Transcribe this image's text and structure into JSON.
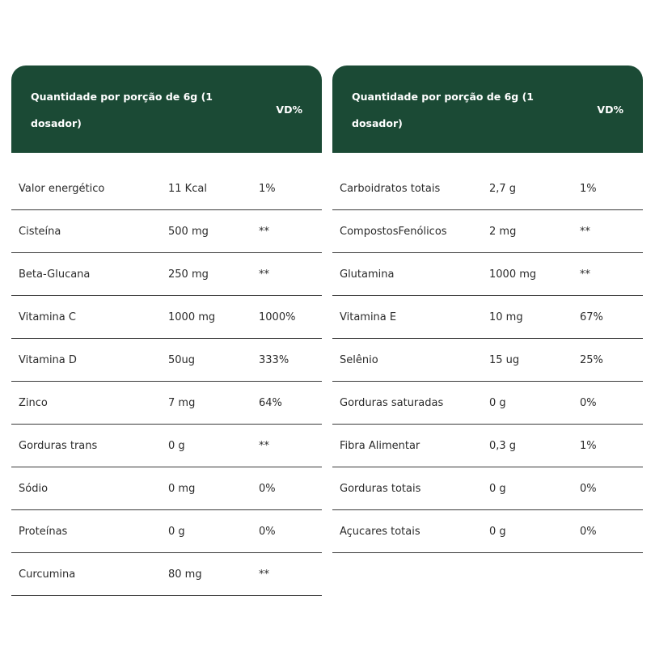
{
  "header": {
    "qty_label": "Quantidade por porção de 6g (1 dosador)",
    "vd_label": "VD%"
  },
  "left_table": [
    {
      "name": "Valor energético",
      "amount": "11 Kcal",
      "vd": "1%"
    },
    {
      "name": "Cisteína",
      "amount": "500 mg",
      "vd": "**"
    },
    {
      "name": "Beta-Glucana",
      "amount": "250 mg",
      "vd": "**"
    },
    {
      "name": "Vitamina C",
      "amount": "1000 mg",
      "vd": "1000%"
    },
    {
      "name": "Vitamina D",
      "amount": "50ug",
      "vd": "333%"
    },
    {
      "name": "Zinco",
      "amount": "7 mg",
      "vd": "64%"
    },
    {
      "name": "Gorduras trans",
      "amount": "0 g",
      "vd": "**"
    },
    {
      "name": "Sódio",
      "amount": "0 mg",
      "vd": "0%"
    },
    {
      "name": "Proteínas",
      "amount": "0 g",
      "vd": "0%"
    },
    {
      "name": "Curcumina",
      "amount": "80 mg",
      "vd": "**"
    }
  ],
  "right_table": [
    {
      "name": "Carboidratos totais",
      "amount": "2,7 g",
      "vd": "1%"
    },
    {
      "name": "CompostosFenólicos",
      "amount": "2 mg",
      "vd": "**"
    },
    {
      "name": "Glutamina",
      "amount": "1000 mg",
      "vd": "**"
    },
    {
      "name": "Vitamina E",
      "amount": "10 mg",
      "vd": "67%"
    },
    {
      "name": "Selênio",
      "amount": "15 ug",
      "vd": "25%"
    },
    {
      "name": "Gorduras saturadas",
      "amount": "0 g",
      "vd": "0%"
    },
    {
      "name": "Fibra Alimentar",
      "amount": "0,3 g",
      "vd": "1%"
    },
    {
      "name": "Gorduras totais",
      "amount": "0 g",
      "vd": "0%"
    },
    {
      "name": "Açucares totais",
      "amount": "0 g",
      "vd": "0%"
    }
  ],
  "colors": {
    "header_bg": "#1b4a35",
    "header_text": "#ffffff",
    "divider": "#3a3a3a"
  }
}
